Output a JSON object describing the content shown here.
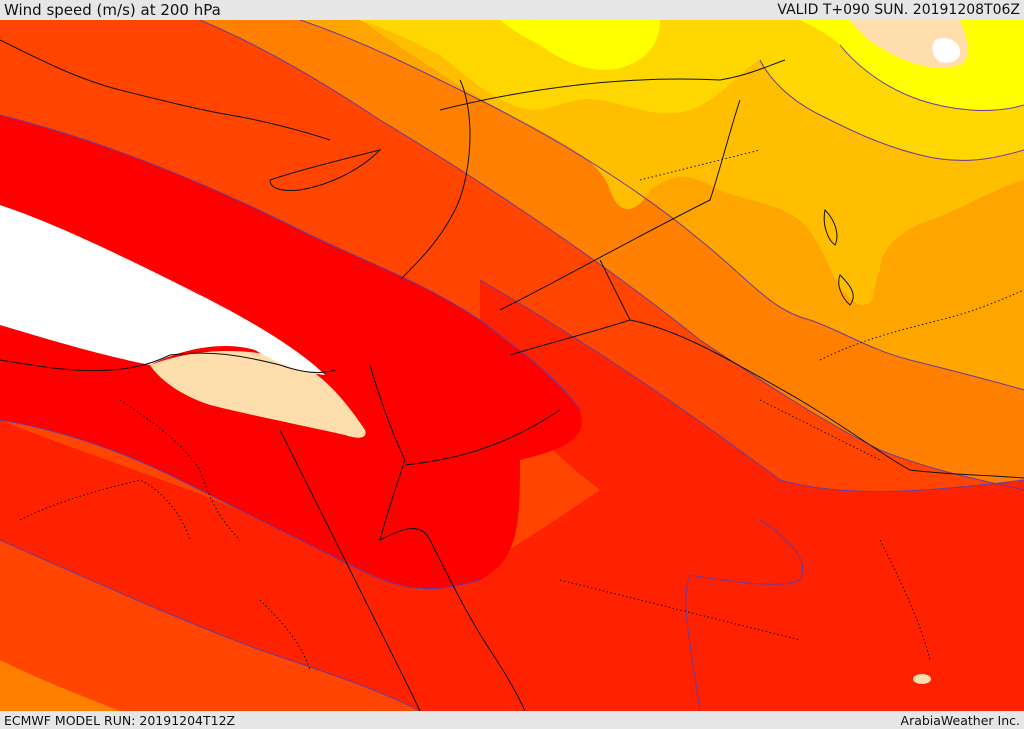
{
  "header": {
    "title": "Wind speed (m/s) at 200 hPa",
    "valid": "VALID T+090 SUN. 20191208T06Z"
  },
  "footer": {
    "model_run": "ECMWF MODEL RUN: 20191204T12Z",
    "provider": "ArabiaWeather Inc."
  },
  "map": {
    "colors": {
      "band_yellow": "#ffff00",
      "band_gold": "#ffd700",
      "band_amber": "#ffbf00",
      "band_orange": "#ffa500",
      "band_dark_orange": "#ff8000",
      "band_orange_red": "#ff4500",
      "band_red_orange": "#ff2200",
      "band_red": "#ff0000",
      "band_peak_light": "#ffdead",
      "band_peak_white": "#ffffff",
      "contour_line": "#6a3aa0",
      "border_line": "#111111"
    }
  }
}
